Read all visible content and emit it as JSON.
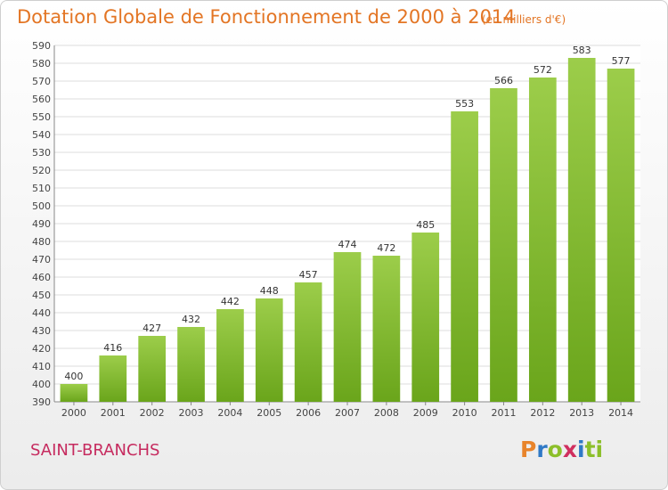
{
  "header": {
    "title": "Dotation Globale de Fonctionnement de 2000 à 2014",
    "subtitle": "(en milliers d'€)"
  },
  "footer": {
    "commune": "SAINT-BRANCHS",
    "logo_text": "Proxiti",
    "logo_letters": [
      "P",
      "r",
      "o",
      "x",
      "i",
      "ti"
    ]
  },
  "colors": {
    "title": "#e37524",
    "commune": "#c62b5f",
    "bar_light": "#9ccd4a",
    "bar_dark": "#6aa51b",
    "grid": "#dddddd"
  },
  "chart_data": {
    "type": "bar",
    "title": "Dotation Globale de Fonctionnement de 2000 à 2014",
    "subtitle": "(en milliers d'€)",
    "xlabel": "",
    "ylabel": "",
    "categories": [
      "2000",
      "2001",
      "2002",
      "2003",
      "2004",
      "2005",
      "2006",
      "2007",
      "2008",
      "2009",
      "2010",
      "2011",
      "2012",
      "2013",
      "2014"
    ],
    "values": [
      400,
      416,
      427,
      432,
      442,
      448,
      457,
      474,
      472,
      485,
      553,
      566,
      572,
      583,
      577
    ],
    "ylim": [
      390,
      590
    ],
    "ytick_step": 10,
    "grid": true,
    "legend": "none"
  }
}
